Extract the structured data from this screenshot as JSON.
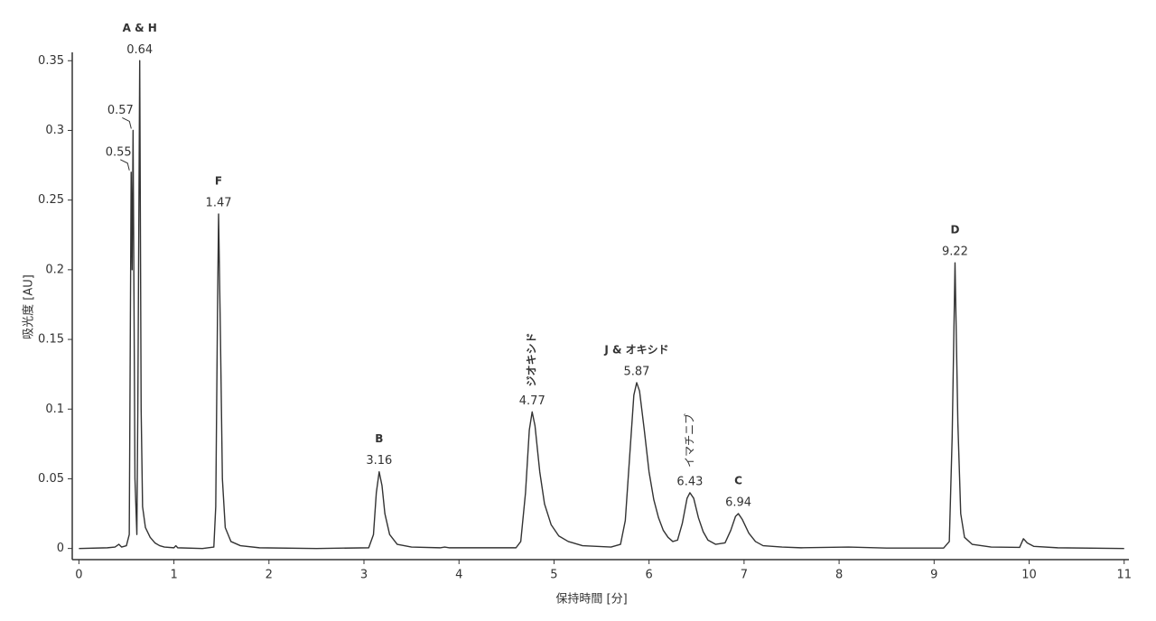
{
  "chart_data": {
    "type": "line",
    "x_label": "保持時間 [分]",
    "y_label": "吸光度 [AU]",
    "color": "#333333",
    "grid": false,
    "xlim": [
      -0.07,
      11.05
    ],
    "ylim": [
      -0.008,
      0.356
    ],
    "xticks": [
      0,
      1,
      2,
      3,
      4,
      5,
      6,
      7,
      8,
      9,
      10,
      11
    ],
    "yticks": [
      0,
      0.05,
      0.1,
      0.15,
      0.2,
      0.25,
      0.3,
      0.35
    ],
    "x": [
      0,
      0.3,
      0.38,
      0.42,
      0.45,
      0.5,
      0.53,
      0.55,
      0.56,
      0.57,
      0.59,
      0.61,
      0.62,
      0.64,
      0.655,
      0.67,
      0.7,
      0.75,
      0.8,
      0.85,
      0.9,
      1.0,
      1.02,
      1.04,
      1.3,
      1.42,
      1.44,
      1.46,
      1.47,
      1.49,
      1.51,
      1.54,
      1.6,
      1.7,
      1.9,
      2.5,
      3.05,
      3.1,
      3.13,
      3.16,
      3.19,
      3.22,
      3.27,
      3.35,
      3.5,
      3.8,
      3.85,
      3.9,
      4.6,
      4.65,
      4.7,
      4.74,
      4.77,
      4.8,
      4.85,
      4.9,
      4.97,
      5.05,
      5.15,
      5.3,
      5.6,
      5.7,
      5.75,
      5.8,
      5.84,
      5.87,
      5.9,
      5.95,
      6.0,
      6.05,
      6.1,
      6.15,
      6.2,
      6.25,
      6.3,
      6.35,
      6.4,
      6.43,
      6.47,
      6.52,
      6.57,
      6.62,
      6.7,
      6.8,
      6.86,
      6.91,
      6.94,
      6.98,
      7.05,
      7.12,
      7.2,
      7.4,
      7.6,
      8.1,
      8.5,
      9.1,
      9.16,
      9.19,
      9.22,
      9.25,
      9.28,
      9.32,
      9.4,
      9.6,
      9.9,
      9.94,
      9.98,
      10.05,
      10.3,
      11
    ],
    "values": [
      0,
      0.0005,
      0.001,
      0.003,
      0.001,
      0.002,
      0.01,
      0.27,
      0.2,
      0.3,
      0.05,
      0.01,
      0.1,
      0.35,
      0.1,
      0.03,
      0.015,
      0.008,
      0.004,
      0.002,
      0.001,
      0.0005,
      0.002,
      0.0005,
      0,
      0.001,
      0.03,
      0.18,
      0.24,
      0.15,
      0.05,
      0.015,
      0.005,
      0.002,
      0.0005,
      0,
      0.0005,
      0.01,
      0.04,
      0.055,
      0.045,
      0.025,
      0.01,
      0.003,
      0.001,
      0.0005,
      0.001,
      0.0005,
      0.0005,
      0.005,
      0.04,
      0.085,
      0.098,
      0.088,
      0.055,
      0.032,
      0.017,
      0.009,
      0.005,
      0.002,
      0.001,
      0.003,
      0.02,
      0.07,
      0.11,
      0.119,
      0.113,
      0.085,
      0.055,
      0.035,
      0.022,
      0.013,
      0.008,
      0.005,
      0.006,
      0.018,
      0.036,
      0.04,
      0.036,
      0.022,
      0.012,
      0.006,
      0.003,
      0.004,
      0.013,
      0.023,
      0.025,
      0.021,
      0.011,
      0.005,
      0.002,
      0.001,
      0.0005,
      0.001,
      0.0003,
      0.0003,
      0.005,
      0.08,
      0.205,
      0.09,
      0.025,
      0.008,
      0.003,
      0.001,
      0.0008,
      0.007,
      0.004,
      0.0015,
      0.0005,
      0
    ],
    "peaks": [
      {
        "rt": 0.55,
        "height": 0.27
      },
      {
        "rt": 0.57,
        "height": 0.3
      },
      {
        "rt": 0.64,
        "height": 0.35,
        "name": "A & H",
        "name_color": "#e00000"
      },
      {
        "rt": 1.47,
        "height": 0.24,
        "name": "F",
        "name_color": "#e00000"
      },
      {
        "rt": 3.16,
        "height": 0.055,
        "name": "B",
        "name_color": "#e00000"
      },
      {
        "rt": 4.77,
        "height": 0.098,
        "name": "ジオキシド",
        "name_color": "#e00000"
      },
      {
        "rt": 5.87,
        "height": 0.119,
        "name": "J & オキシド",
        "name_color": "#e00000"
      },
      {
        "rt": 6.43,
        "height": 0.04,
        "name": "イマチニブ",
        "name_color": "#e07b20"
      },
      {
        "rt": 6.94,
        "height": 0.025,
        "name": "C",
        "name_color": "#e00000"
      },
      {
        "rt": 9.22,
        "height": 0.205,
        "name": "D",
        "name_color": "#e00000"
      }
    ]
  }
}
